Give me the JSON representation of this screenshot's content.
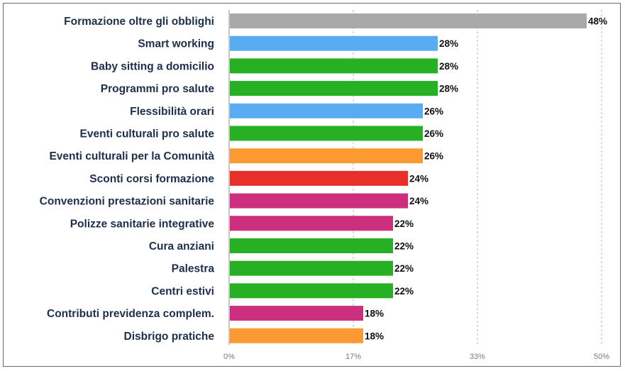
{
  "chart_data": {
    "type": "bar",
    "orientation": "horizontal",
    "categories": [
      "Formazione oltre gli obblighi",
      "Smart working",
      "Baby sitting a domicilio",
      "Programmi pro salute",
      "Flessibilità orari",
      "Eventi culturali pro salute",
      "Eventi culturali per la Comunità",
      "Sconti corsi formazione",
      "Convenzioni prestazioni sanitarie",
      "Polizze sanitarie integrative",
      "Cura anziani",
      "Palestra",
      "Centri estivi",
      "Contributi previdenza complem.",
      "Disbrigo pratiche"
    ],
    "values": [
      48,
      28,
      28,
      28,
      26,
      26,
      26,
      24,
      24,
      22,
      22,
      22,
      22,
      18,
      18
    ],
    "value_labels": [
      "48%",
      "28%",
      "28%",
      "28%",
      "26%",
      "26%",
      "26%",
      "24%",
      "24%",
      "22%",
      "22%",
      "22%",
      "22%",
      "18%",
      "18%"
    ],
    "bar_colors": [
      "#a9a9a9",
      "#5aacf2",
      "#27b024",
      "#27b024",
      "#5aacf2",
      "#27b024",
      "#fb9a33",
      "#e8302a",
      "#cc2f7d",
      "#cc2f7d",
      "#27b024",
      "#27b024",
      "#27b024",
      "#cc2f7d",
      "#fb9a33"
    ],
    "xlim": [
      0,
      50
    ],
    "x_ticks": [
      0,
      16.67,
      33.33,
      50
    ],
    "x_tick_labels": [
      "0%",
      "17%",
      "33%",
      "50%"
    ],
    "grid": "vertical dashed",
    "title": "",
    "xlabel": "",
    "ylabel": ""
  }
}
